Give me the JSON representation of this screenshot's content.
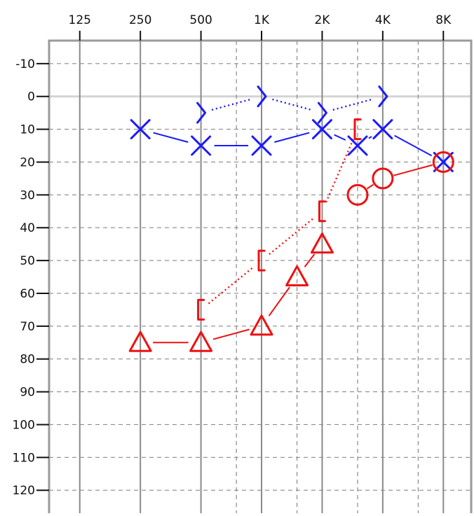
{
  "chart_data": {
    "type": "scatter",
    "title": "",
    "xlabel": "",
    "ylabel": "",
    "x_scale": "log2",
    "x_ticks": [
      {
        "label": "125",
        "freq": 125
      },
      {
        "label": "250",
        "freq": 250
      },
      {
        "label": "500",
        "freq": 500
      },
      {
        "label": "1K",
        "freq": 1000
      },
      {
        "label": "2K",
        "freq": 2000
      },
      {
        "label": "4K",
        "freq": 4000
      },
      {
        "label": "8K",
        "freq": 8000
      }
    ],
    "x_intermediate": [
      750,
      1500,
      3000,
      6000
    ],
    "xlim": [
      88,
      11000
    ],
    "ylim": [
      -17,
      127
    ],
    "y_inverted": true,
    "y_ticks": [
      -10,
      0,
      10,
      20,
      30,
      40,
      50,
      60,
      70,
      80,
      90,
      100,
      110,
      120
    ],
    "zero_line": 0,
    "grid": true,
    "series": [
      {
        "marker": "cross",
        "color": "#1a1aff",
        "line": "solid",
        "points": [
          {
            "x": 250,
            "y": 10
          },
          {
            "x": 500,
            "y": 15
          },
          {
            "x": 1000,
            "y": 15
          },
          {
            "x": 2000,
            "y": 10
          },
          {
            "x": 3000,
            "y": 15
          },
          {
            "x": 4000,
            "y": 10
          },
          {
            "x": 8000,
            "y": 20
          }
        ]
      },
      {
        "marker": "chevron-right",
        "color": "#1a1aff",
        "line": "dotted",
        "points": [
          {
            "x": 500,
            "y": 5
          },
          {
            "x": 1000,
            "y": 0
          },
          {
            "x": 2000,
            "y": 5
          },
          {
            "x": 4000,
            "y": 0
          }
        ]
      },
      {
        "marker": "triangle",
        "color": "#ee1111",
        "line": "solid",
        "points": [
          {
            "x": 250,
            "y": 75
          },
          {
            "x": 500,
            "y": 75
          },
          {
            "x": 1000,
            "y": 70
          },
          {
            "x": 1500,
            "y": 55
          },
          {
            "x": 2000,
            "y": 45
          }
        ]
      },
      {
        "marker": "circle",
        "color": "#ee1111",
        "line": "solid",
        "points": [
          {
            "x": 3000,
            "y": 30
          },
          {
            "x": 4000,
            "y": 25
          },
          {
            "x": 8000,
            "y": 20
          }
        ]
      },
      {
        "marker": "bracket-left",
        "color": "#ee1111",
        "line": "dotted",
        "points": [
          {
            "x": 500,
            "y": 65
          },
          {
            "x": 1000,
            "y": 50
          },
          {
            "x": 2000,
            "y": 35
          },
          {
            "x": 3000,
            "y": 10
          }
        ]
      }
    ]
  }
}
